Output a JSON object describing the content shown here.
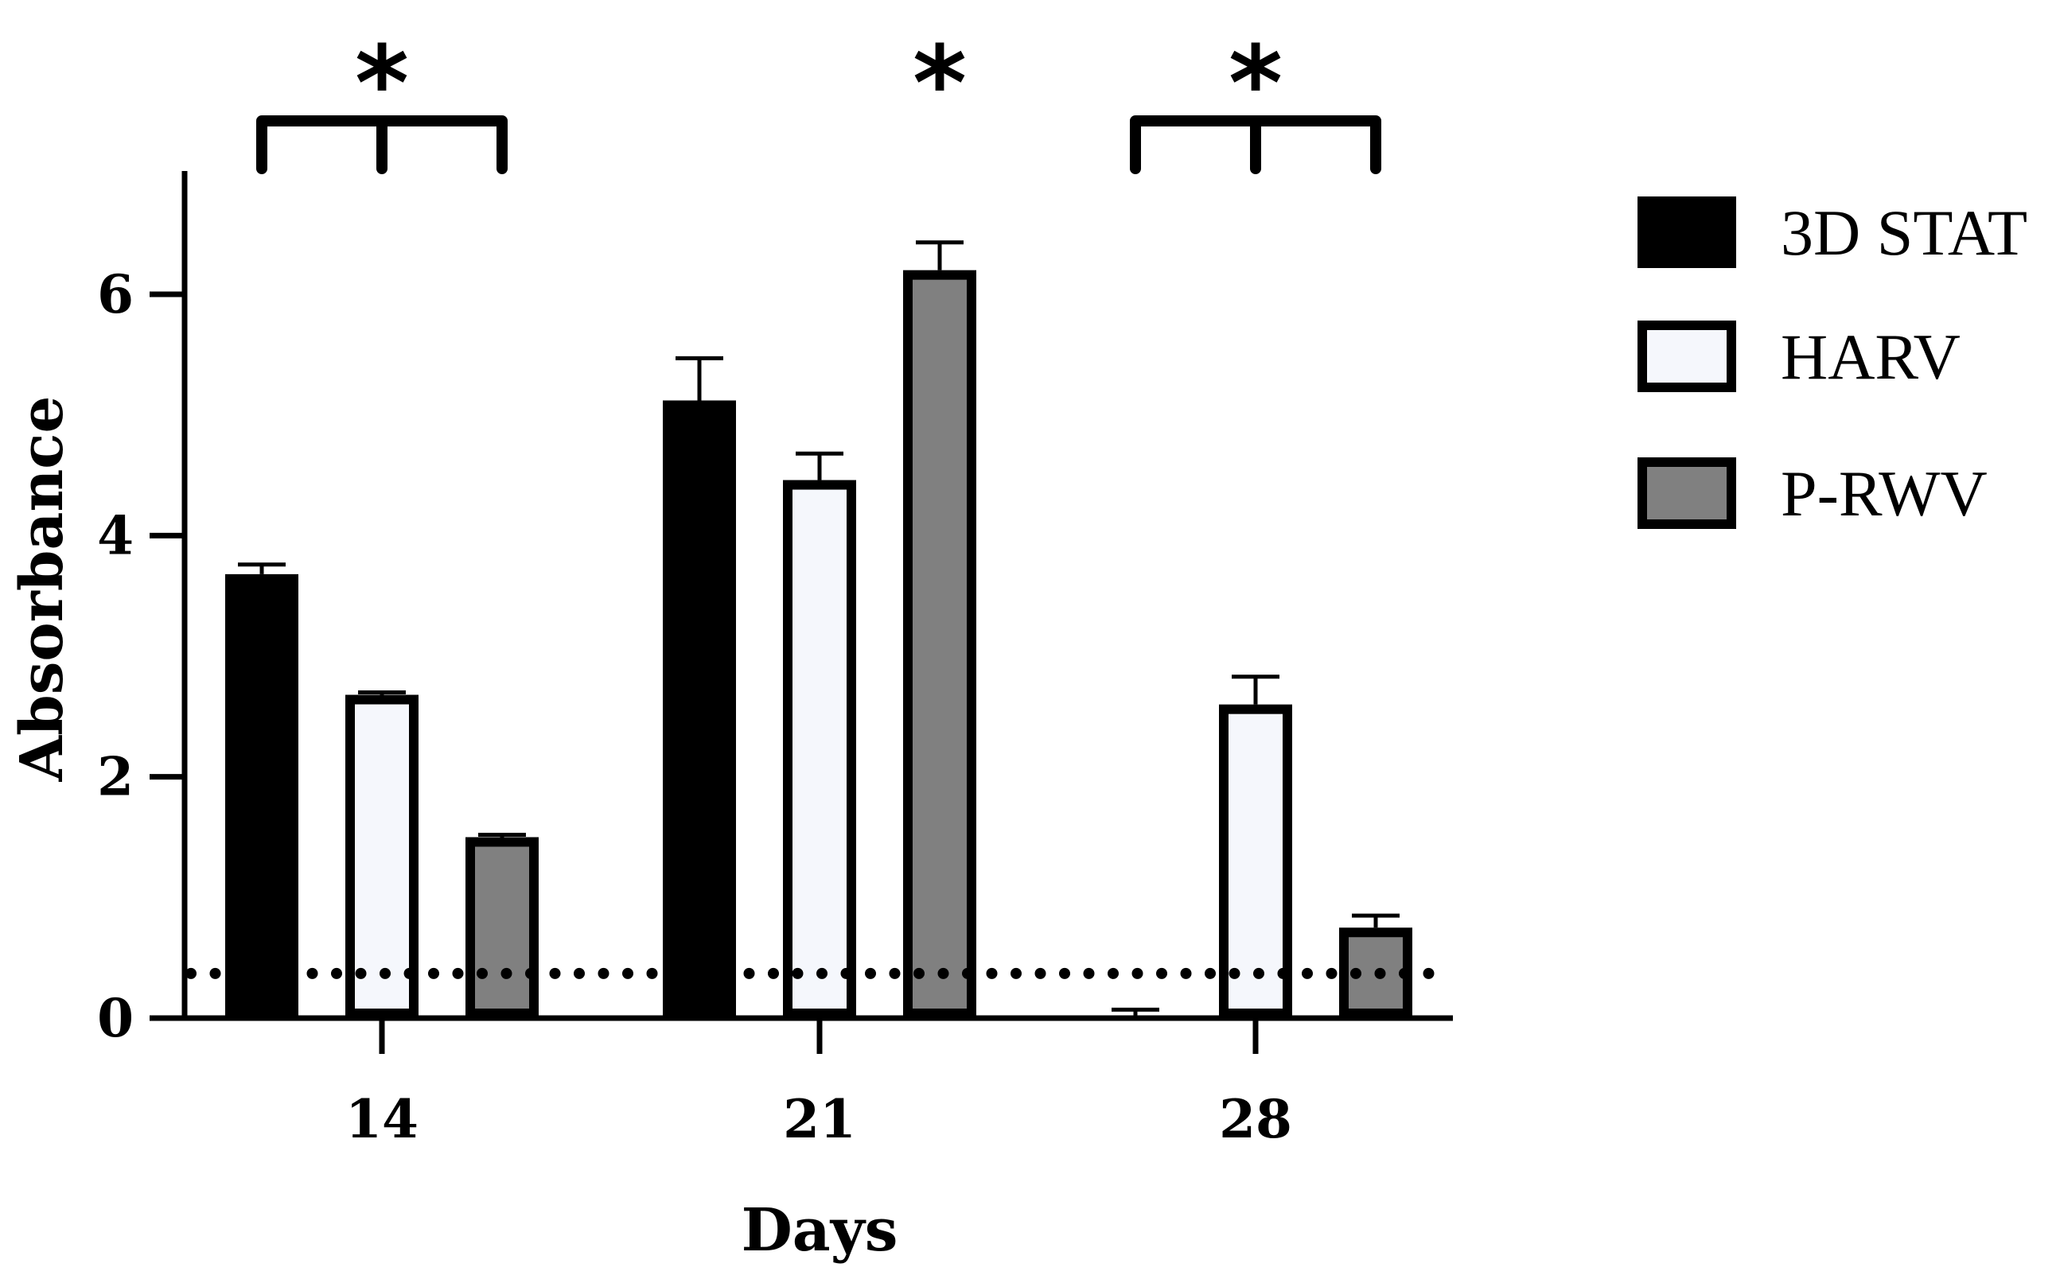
{
  "chart_data": {
    "type": "bar",
    "xlabel": "Days",
    "ylabel": "Absorbance",
    "categories": [
      "14",
      "21",
      "28"
    ],
    "ylim": [
      0,
      7
    ],
    "yticks": [
      "0",
      "2",
      "4",
      "6"
    ],
    "reference_line": {
      "style": "dotted",
      "y": 0.37
    },
    "series": [
      {
        "name": "3D STAT",
        "color": "#000000",
        "values": [
          3.68,
          5.12,
          0.0
        ],
        "errors": [
          0.08,
          0.35,
          0.07
        ]
      },
      {
        "name": "HARV",
        "color": "#f5f7fc",
        "values": [
          2.68,
          4.46,
          2.6
        ],
        "errors": [
          0.02,
          0.22,
          0.23
        ]
      },
      {
        "name": "P-RWV",
        "color": "#808080",
        "values": [
          1.5,
          6.2,
          0.75
        ],
        "errors": [
          0.02,
          0.23,
          0.1
        ]
      }
    ],
    "significance": [
      {
        "category": "14",
        "label": "*",
        "bracket": true
      },
      {
        "category": "21",
        "label": "*",
        "bracket": false
      },
      {
        "category": "28",
        "label": "*",
        "bracket": true
      }
    ],
    "legend": "right"
  }
}
